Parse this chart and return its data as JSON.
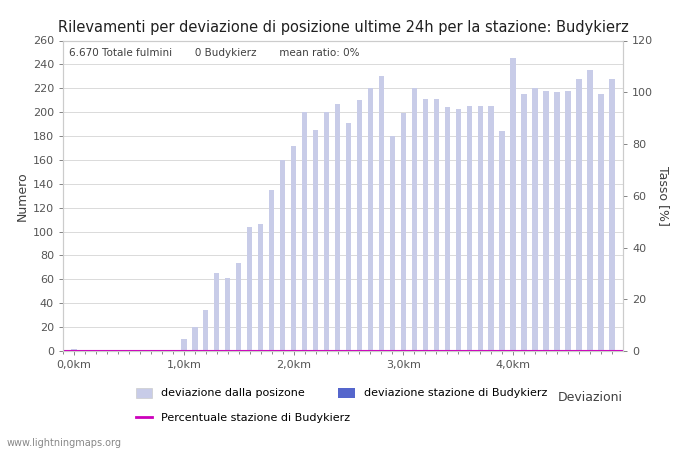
{
  "title": "Rilevamenti per deviazione di posizione ultime 24h per la stazione: Budykierz",
  "ylabel_left": "Numero",
  "ylabel_right": "Tasso [%]",
  "info_text": "6.670 Totale fulmini       0 Budykierz       mean ratio: 0%",
  "watermark": "www.lightningmaps.org",
  "xlabel": "Deviazioni",
  "ylim_left": [
    0,
    260
  ],
  "ylim_right": [
    0,
    120
  ],
  "bar_color_light": "#c8cce8",
  "bar_color_dark": "#5566cc",
  "line_color": "#cc00bb",
  "background_color": "#ffffff",
  "grid_color": "#cccccc",
  "axis_label_color": "#404040",
  "tick_color": "#555555",
  "title_color": "#202020",
  "legend_label_light": "deviazione dalla posizone",
  "legend_label_dark": "deviazione stazione di Budykierz",
  "legend_label_line": "Percentuale stazione di Budykierz",
  "xtick_labels": [
    "0,0km",
    "1,0km",
    "2,0km",
    "3,0km",
    "4,0km"
  ],
  "bar_values": [
    2,
    0,
    0,
    0,
    0,
    0,
    0,
    0,
    1,
    0,
    10,
    20,
    34,
    65,
    61,
    74,
    104,
    106,
    135,
    160,
    172,
    200,
    185,
    200,
    207,
    191,
    210,
    220,
    230,
    180,
    199,
    220,
    211,
    211,
    204,
    203,
    205,
    205,
    205,
    184,
    245,
    215,
    220,
    218,
    217,
    218,
    228,
    235,
    215,
    228
  ],
  "num_bars": 50,
  "figsize": [
    7.0,
    4.5
  ],
  "dpi": 100
}
